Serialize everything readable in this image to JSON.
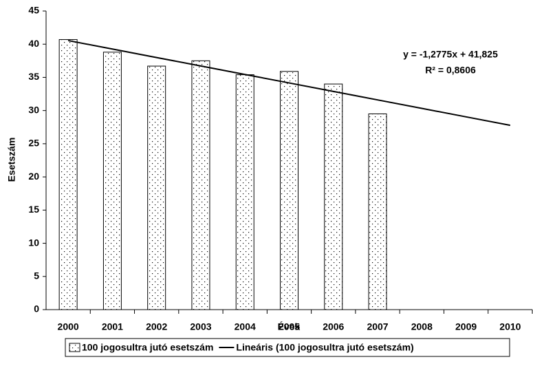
{
  "chart_data": {
    "type": "bar",
    "x_label": "Évek",
    "y_label": "Esetszám",
    "categories": [
      "2000",
      "2001",
      "2002",
      "2003",
      "2004",
      "2005",
      "2006",
      "2007",
      "2008",
      "2009",
      "2010"
    ],
    "series": [
      {
        "name": "100 jogosultra jutó esetszám",
        "type": "bar",
        "color": "#000000",
        "values": [
          40.7,
          38.8,
          36.7,
          37.5,
          35.4,
          35.9,
          34.0,
          29.5,
          null,
          null,
          null
        ]
      },
      {
        "name": "Lineáris (100 jogosultra jutó esetszám)",
        "type": "line",
        "color": "#000000",
        "values": [
          40.5475,
          39.27,
          37.9925,
          36.715,
          35.4375,
          34.16,
          32.8825,
          31.605,
          30.3275,
          29.05,
          27.7725
        ]
      }
    ],
    "annotations": [
      "y = -1,2775x + 41,825",
      "R² = 0,8606"
    ],
    "ylim": [
      0,
      45
    ],
    "yticks": [
      0,
      5,
      10,
      15,
      20,
      25,
      30,
      35,
      40,
      45
    ],
    "grid": false,
    "legend": "bottom"
  }
}
